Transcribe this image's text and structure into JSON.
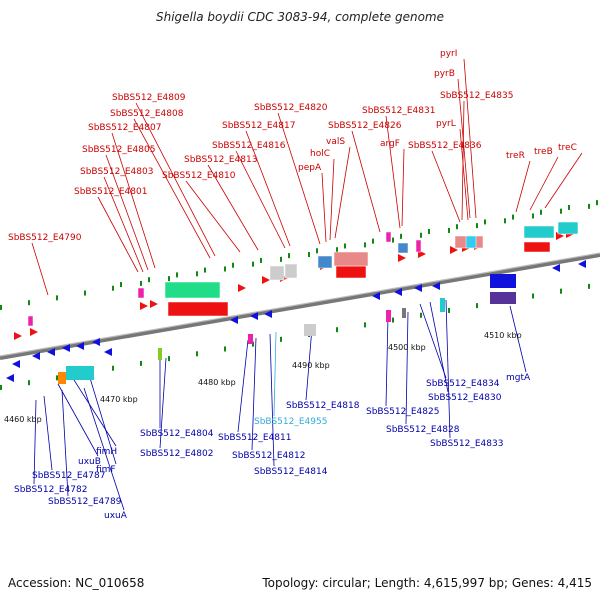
{
  "title": "Shigella boydii CDC 3083-94, complete genome",
  "footer": {
    "accession": "Accession: NC_010658",
    "topology": "Topology: circular; Length: 4,615,997 bp; Genes: 4,415"
  },
  "colors": {
    "forward_label": "#cc0000",
    "reverse_label": "#0000aa",
    "rna_label": "#33aadd",
    "backbone": "#888888",
    "forward_gene": "#ee1111",
    "reverse_gene": "#1111dd",
    "marker": "#118811"
  },
  "scale_ticks": [
    "4460 kbp",
    "4470 kbp",
    "4480 kbp",
    "4490 kbp",
    "4500 kbp",
    "4510 kbp"
  ],
  "top_labels": [
    "SbBS512_E4790",
    "SbBS512_E4801",
    "SbBS512_E4803",
    "SbBS512_E4805",
    "SbBS512_E4807",
    "SbBS512_E4808",
    "SbBS512_E4809",
    "SbBS512_E4810",
    "SbBS512_E4813",
    "SbBS512_E4816",
    "SbBS512_E4817",
    "SbBS512_E4820",
    "pepA",
    "holC",
    "valS",
    "SbBS512_E4826",
    "SbBS512_E4831",
    "argF",
    "SbBS512_E4836",
    "pyrL",
    "SbBS512_E4835",
    "pyrB",
    "pyrI",
    "treR",
    "treB",
    "treC"
  ],
  "bottom_labels": [
    "uxuB",
    "fimH",
    "fimF",
    "SbBS512_E4787",
    "SbBS512_E4782",
    "SbBS512_E4789",
    "uxuA",
    "SbBS512_E4804",
    "SbBS512_E4802",
    "SbBS512_E4811",
    "SbBS512_E4812",
    "SbBS512_E4814",
    "SbBS512_E4955",
    "SbBS512_E4818",
    "SbBS512_E4834",
    "SbBS512_E4830",
    "SbBS512_E4825",
    "SbBS512_E4828",
    "SbBS512_E4833",
    "mgtA"
  ]
}
